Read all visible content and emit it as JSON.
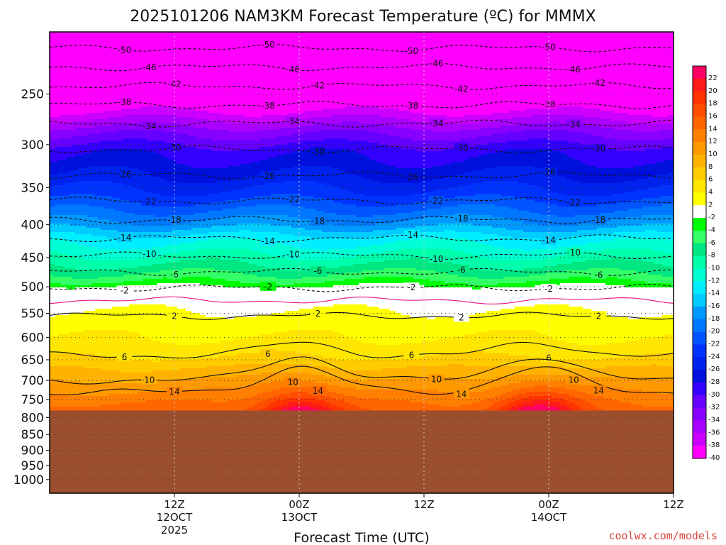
{
  "chart_data": {
    "type": "heatmap",
    "title": "2025101206 NAM3KM Forecast Temperature (ºC) for MMMX",
    "xlabel": "Forecast Time (UTC)",
    "ylabel": "",
    "credit": "coolwx.com/models",
    "y_axis": {
      "scale": "log",
      "direction": "top-low",
      "range": [
        200,
        1050
      ],
      "ticks": [
        250,
        300,
        350,
        400,
        450,
        500,
        550,
        600,
        650,
        700,
        750,
        800,
        850,
        900,
        950,
        1000
      ]
    },
    "x_axis": {
      "range_hours": [
        -6,
        54
      ],
      "ticks": [
        {
          "hour": 6,
          "label": "12Z",
          "sub": "12OCT",
          "sub2": "2025"
        },
        {
          "hour": 18,
          "label": "00Z",
          "sub": "13OCT",
          "sub2": ""
        },
        {
          "hour": 30,
          "label": "12Z",
          "sub": "",
          "sub2": ""
        },
        {
          "hour": 42,
          "label": "00Z",
          "sub": "14OCT",
          "sub2": ""
        },
        {
          "hour": 54,
          "label": "12Z",
          "sub": "",
          "sub2": ""
        }
      ]
    },
    "surface_pressure": 780,
    "surface_color": "#9b4f2e",
    "colorbar": {
      "levels": [
        22,
        20,
        18,
        16,
        14,
        12,
        10,
        8,
        6,
        4,
        2,
        -2,
        -4,
        -6,
        -8,
        -10,
        -12,
        -14,
        -16,
        -18,
        -20,
        -22,
        -24,
        -26,
        -28,
        -30,
        -32,
        -34,
        -36,
        -38,
        -40
      ],
      "labels": [
        "22",
        "20",
        "18",
        "16",
        "14",
        "12",
        "10",
        "8",
        "6",
        "4",
        "2",
        "-2",
        "-4",
        "-6",
        "-8",
        "-10",
        "-12",
        "-14",
        "-16",
        "-18",
        "-20",
        "-22",
        "-24",
        "-26",
        "-28",
        "-30",
        "-32",
        "-34",
        "-36",
        "-38",
        "-40"
      ],
      "colors": [
        "#ff0066",
        "#ff1a1a",
        "#ff3300",
        "#ff4d00",
        "#ff6600",
        "#ff8000",
        "#ff9900",
        "#ffb300",
        "#ffcc00",
        "#ffe600",
        "#ffff00",
        "#ffffff",
        "#00ff00",
        "#33ff66",
        "#00e680",
        "#00ffaa",
        "#00ffd5",
        "#00eeff",
        "#00ccff",
        "#0099ff",
        "#0077ff",
        "#0055ff",
        "#0033ff",
        "#0022ee",
        "#0011dd",
        "#3300ff",
        "#6600ff",
        "#8800ff",
        "#aa00ff",
        "#cc00ff",
        "#ff00ff"
      ]
    },
    "profile": [
      {
        "p": 200,
        "t": -56
      },
      {
        "p": 210,
        "t": -53
      },
      {
        "p": 225,
        "t": -49
      },
      {
        "p": 240,
        "t": -45
      },
      {
        "p": 255,
        "t": -41
      },
      {
        "p": 270,
        "t": -37
      },
      {
        "p": 285,
        "t": -33
      },
      {
        "p": 305,
        "t": -29
      },
      {
        "p": 335,
        "t": -26
      },
      {
        "p": 360,
        "t": -23
      },
      {
        "p": 380,
        "t": -20
      },
      {
        "p": 400,
        "t": -17
      },
      {
        "p": 420,
        "t": -13
      },
      {
        "p": 445,
        "t": -10
      },
      {
        "p": 470,
        "t": -7
      },
      {
        "p": 490,
        "t": -4
      },
      {
        "p": 505,
        "t": -1
      },
      {
        "p": 525,
        "t": 1
      },
      {
        "p": 545,
        "t": 2
      },
      {
        "p": 570,
        "t": 3
      },
      {
        "p": 600,
        "t": 4
      },
      {
        "p": 625,
        "t": 5
      },
      {
        "p": 645,
        "t": 6
      },
      {
        "p": 670,
        "t": 8
      },
      {
        "p": 700,
        "t": 10
      },
      {
        "p": 730,
        "t": 12
      },
      {
        "p": 760,
        "t": 14
      },
      {
        "p": 780,
        "t": 15
      }
    ],
    "diurnal_amplitude": 9,
    "diurnal_peak_hours": [
      18,
      41
    ],
    "contour_lines": [
      {
        "label": "-50",
        "p": 212,
        "style": "dashed"
      },
      {
        "label": "-46",
        "p": 227,
        "style": "dashed"
      },
      {
        "label": "-42",
        "p": 243,
        "style": "dashed"
      },
      {
        "label": "-38",
        "p": 260,
        "style": "dashed"
      },
      {
        "label": "-34",
        "p": 278,
        "style": "dashed"
      },
      {
        "label": "-30",
        "p": 305,
        "style": "dashed"
      },
      {
        "label": "-26",
        "p": 335,
        "style": "dashed"
      },
      {
        "label": "-22",
        "p": 367,
        "style": "dashed"
      },
      {
        "label": "-18",
        "p": 393,
        "style": "dashed"
      },
      {
        "label": "-14",
        "p": 420,
        "style": "dashed"
      },
      {
        "label": "-10",
        "p": 447,
        "style": "dashed"
      },
      {
        "label": "-6",
        "p": 474,
        "style": "dashed"
      },
      {
        "label": "-2",
        "p": 502,
        "style": "dashed"
      },
      {
        "label": "0",
        "p": 525,
        "style": "zero"
      },
      {
        "label": "2",
        "p": 555,
        "style": "solid"
      },
      {
        "label": "6",
        "p": 640,
        "style": "solid"
      },
      {
        "label": "10",
        "p": 700,
        "style": "solid"
      },
      {
        "label": "14",
        "p": 730,
        "style": "solid"
      }
    ]
  }
}
